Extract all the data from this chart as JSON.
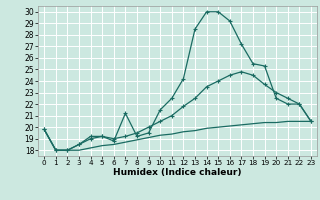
{
  "xlabel": "Humidex (Indice chaleur)",
  "bg_color": "#cce8e0",
  "grid_color": "#ffffff",
  "line_color": "#1a6b62",
  "xlim": [
    -0.5,
    23.5
  ],
  "ylim": [
    17.5,
    30.5
  ],
  "xticks": [
    0,
    1,
    2,
    3,
    4,
    5,
    6,
    7,
    8,
    9,
    10,
    11,
    12,
    13,
    14,
    15,
    16,
    17,
    18,
    19,
    20,
    21,
    22,
    23
  ],
  "yticks": [
    18,
    19,
    20,
    21,
    22,
    23,
    24,
    25,
    26,
    27,
    28,
    29,
    30
  ],
  "line1_x": [
    0,
    1,
    2,
    3,
    4,
    5,
    6,
    7,
    8,
    9,
    10,
    11,
    12,
    13,
    14,
    15,
    16,
    17,
    18,
    19,
    20,
    21,
    22,
    23
  ],
  "line1_y": [
    19.8,
    18.0,
    18.0,
    18.5,
    19.0,
    19.2,
    18.8,
    21.2,
    19.2,
    19.5,
    21.5,
    22.5,
    24.2,
    28.5,
    30.0,
    30.0,
    29.2,
    27.2,
    25.5,
    25.3,
    22.5,
    22.0,
    22.0,
    20.5
  ],
  "line2_x": [
    0,
    1,
    2,
    3,
    4,
    5,
    6,
    7,
    8,
    9,
    10,
    11,
    12,
    13,
    14,
    15,
    16,
    17,
    18,
    19,
    20,
    21,
    22,
    23
  ],
  "line2_y": [
    19.8,
    18.0,
    18.0,
    18.5,
    19.2,
    19.2,
    19.0,
    19.2,
    19.5,
    20.0,
    20.5,
    21.0,
    21.8,
    22.5,
    23.5,
    24.0,
    24.5,
    24.8,
    24.5,
    23.7,
    23.0,
    22.5,
    22.0,
    20.5
  ],
  "line3_x": [
    0,
    1,
    2,
    3,
    4,
    5,
    6,
    7,
    8,
    9,
    10,
    11,
    12,
    13,
    14,
    15,
    16,
    17,
    18,
    19,
    20,
    21,
    22,
    23
  ],
  "line3_y": [
    19.8,
    18.0,
    18.0,
    18.0,
    18.2,
    18.4,
    18.5,
    18.7,
    18.9,
    19.1,
    19.3,
    19.4,
    19.6,
    19.7,
    19.9,
    20.0,
    20.1,
    20.2,
    20.3,
    20.4,
    20.4,
    20.5,
    20.5,
    20.5
  ]
}
